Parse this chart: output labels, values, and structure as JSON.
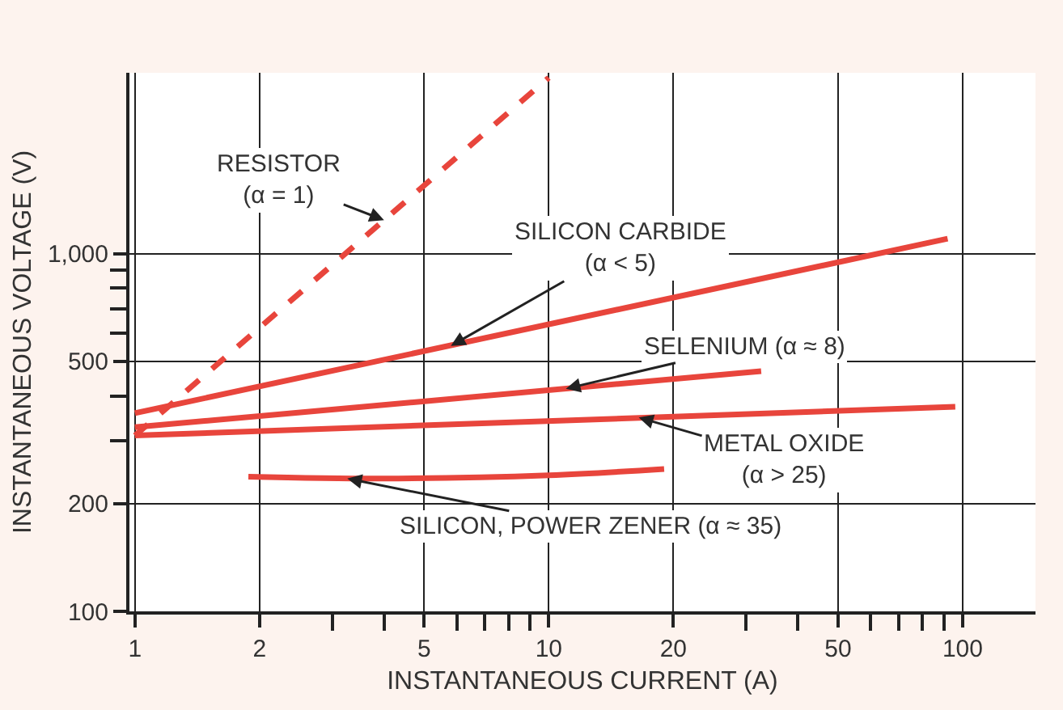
{
  "chart_data": {
    "type": "line",
    "xlabel": "INSTANTANEOUS CURRENT (A)",
    "ylabel": "INSTANTANEOUS VOLTAGE (V)",
    "log": "xy",
    "grid": true,
    "legend": false,
    "marker": "none",
    "xlim": [
      0.97,
      150
    ],
    "ylim": [
      100,
      3200
    ],
    "xticks": [
      1,
      2,
      {
        "value": 3,
        "label": null
      },
      {
        "value": 4,
        "label": null
      },
      5,
      {
        "value": 6,
        "label": null
      },
      {
        "value": 7,
        "label": null
      },
      {
        "value": 8,
        "label": null
      },
      {
        "value": 9,
        "label": null
      },
      10,
      20,
      {
        "value": 30,
        "label": null
      },
      {
        "value": 40,
        "label": null
      },
      50,
      {
        "value": 60,
        "label": null
      },
      {
        "value": 70,
        "label": null
      },
      {
        "value": 80,
        "label": null
      },
      {
        "value": 90,
        "label": null
      },
      100
    ],
    "yticks": [
      100,
      200,
      {
        "value": 300,
        "label": null
      },
      {
        "value": 400,
        "label": null
      },
      500,
      {
        "value": 600,
        "label": null
      },
      {
        "value": 700,
        "label": null
      },
      {
        "value": 800,
        "label": null
      },
      {
        "value": 900,
        "label": null
      },
      {
        "value": 1000,
        "label": "1,000"
      }
    ],
    "series": [
      {
        "color": "#e8453c",
        "line_style": "dashed",
        "x": [
          1,
          10
        ],
        "values": [
          310,
          3100
        ]
      },
      {
        "color": "#e8453c",
        "line_style": "solid",
        "x": [
          1,
          92
        ],
        "values": [
          358,
          1100
        ]
      },
      {
        "color": "#e8453c",
        "line_style": "solid",
        "x": [
          1,
          32.6
        ],
        "values": [
          327,
          469
        ]
      },
      {
        "color": "#e8453c",
        "line_style": "solid",
        "x": [
          1,
          96
        ],
        "values": [
          310,
          373
        ]
      },
      {
        "color": "#e8453c",
        "line_style": "solid",
        "x": [
          1.88,
          4,
          10,
          19
        ],
        "values": [
          238,
          235,
          240,
          250
        ]
      }
    ],
    "annotations": [
      {
        "text": "RESISTOR\n(α = 1)",
        "x": 4,
        "y": 1240
      },
      {
        "text": "SILICON CARBIDE\n(α < 5)",
        "x": 5.8,
        "y": 552
      },
      {
        "text": "SELENIUM (α ≈ 8)",
        "x": 11,
        "y": 419
      },
      {
        "text": "METAL OXIDE\n(α > 25)",
        "x": 16.5,
        "y": 348
      },
      {
        "text": "SILICON, POWER ZENER (α ≈ 35)",
        "x": 3.26,
        "y": 235
      }
    ]
  }
}
